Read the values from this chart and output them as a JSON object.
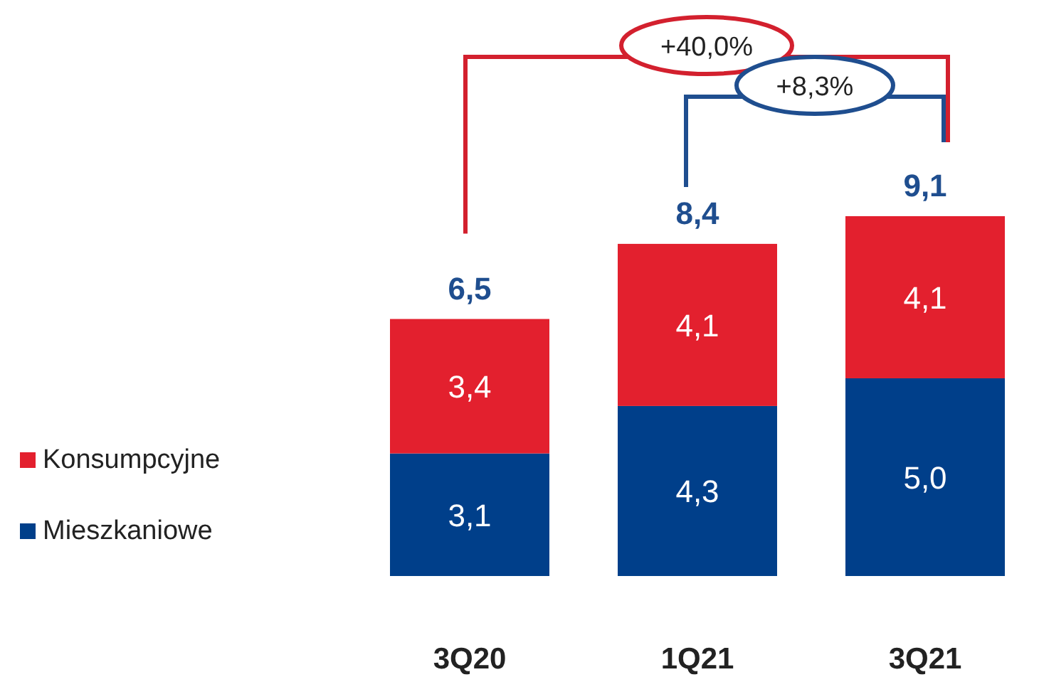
{
  "chart_data": {
    "type": "bar",
    "stacked": true,
    "categories": [
      "3Q20",
      "1Q21",
      "3Q21"
    ],
    "series": [
      {
        "name": "Mieszkaniowe",
        "color": "#003f8a",
        "values": [
          3.1,
          4.3,
          5.0
        ],
        "value_labels": [
          "3,1",
          "4,3",
          "5,0"
        ]
      },
      {
        "name": "Konsumpcyjne",
        "color": "#e3202e",
        "values": [
          3.4,
          4.1,
          4.1
        ],
        "value_labels": [
          "3,4",
          "4,1",
          "4,1"
        ]
      }
    ],
    "totals": [
      "6,5",
      "8,4",
      "9,1"
    ],
    "legend": "left",
    "annotations": [
      "+40,0%",
      "+8,3%"
    ]
  }
}
